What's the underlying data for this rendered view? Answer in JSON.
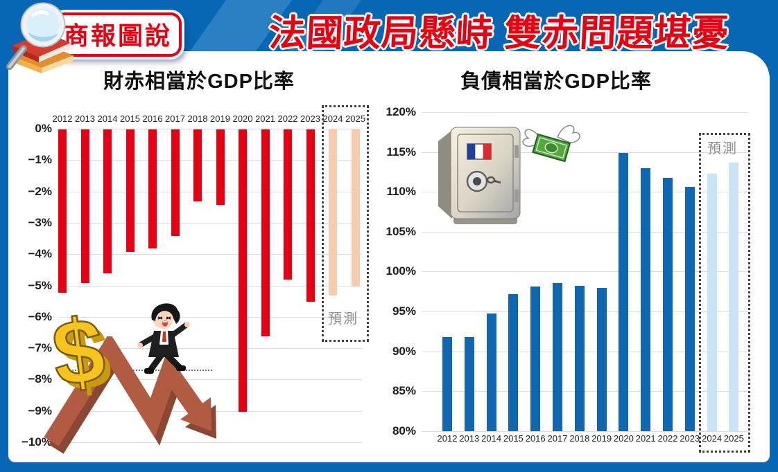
{
  "header": {
    "badge": "商報圖說",
    "title": "法國政局懸峙 雙赤問題堪憂"
  },
  "colors": {
    "frame_blue": "#0767b4",
    "accent_red": "#e60012",
    "bar_red": "#e60012",
    "bar_pink": "#f6cbae",
    "bar_blue": "#0f67b2",
    "bar_light_blue": "#c9e4f7",
    "forecast_text": "#8f8f8f",
    "gridline": "#dcdcdc"
  },
  "chart_data": [
    {
      "id": "deficit",
      "type": "bar",
      "title": "財赤相當於GDP比率",
      "categories": [
        "2012",
        "2013",
        "2014",
        "2015",
        "2016",
        "2017",
        "2018",
        "2019",
        "2020",
        "2021",
        "2022",
        "2023",
        "2024",
        "2025"
      ],
      "values": [
        -5.2,
        -4.9,
        -4.6,
        -3.9,
        -3.8,
        -3.4,
        -2.3,
        -2.4,
        -9.0,
        -6.6,
        -4.8,
        -5.5,
        -5.3,
        -5.0
      ],
      "forecast_from": "2024",
      "forecast_label": "預測",
      "ylim": [
        -10,
        0
      ],
      "yticks": [
        "0%",
        "−1%",
        "−2%",
        "−3%",
        "−4%",
        "−5%",
        "−6%",
        "−7%",
        "−8%",
        "−9%",
        "−10%"
      ],
      "grid": true,
      "legend_position": "none"
    },
    {
      "id": "debt",
      "type": "bar",
      "title": "負債相當於GDP比率",
      "categories": [
        "2012",
        "2013",
        "2014",
        "2015",
        "2016",
        "2017",
        "2018",
        "2019",
        "2020",
        "2021",
        "2022",
        "2023",
        "2024",
        "2025"
      ],
      "values": [
        91.8,
        91.8,
        94.8,
        97.2,
        98.1,
        98.6,
        98.2,
        98.0,
        114.9,
        113.0,
        111.8,
        110.6,
        112.3,
        113.7
      ],
      "forecast_from": "2024",
      "forecast_label": "預測",
      "ylim": [
        80,
        120
      ],
      "yticks": [
        "120%",
        "115%",
        "110%",
        "105%",
        "100%",
        "95%",
        "90%",
        "85%",
        "80%"
      ],
      "grid": true,
      "legend_position": "none"
    }
  ]
}
